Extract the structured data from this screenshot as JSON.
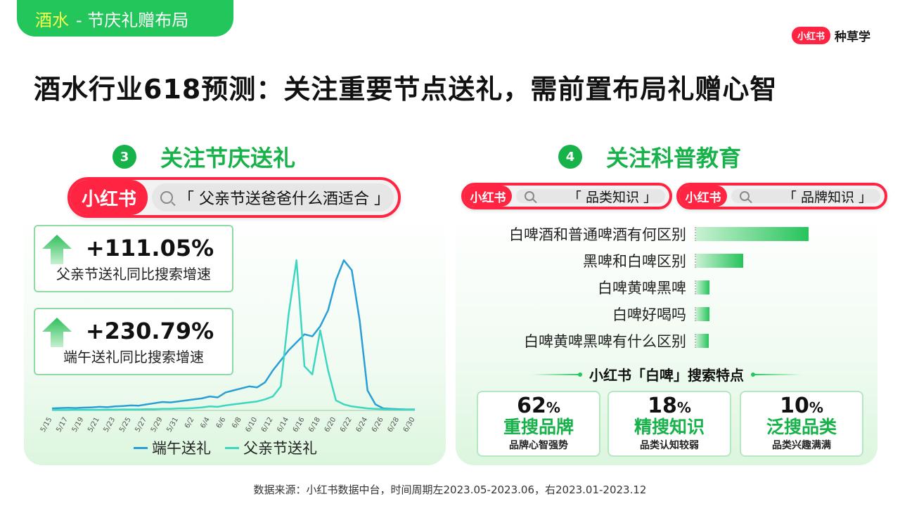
{
  "tag": {
    "highlight": "酒水",
    "rest": "- 节庆礼赠布局"
  },
  "brand": {
    "badge": "小红书",
    "text": "种草学"
  },
  "headline": "酒水行业618预测：关注重要节点送礼，需前置布局礼赠心智",
  "left": {
    "num": "3",
    "title": "关注节庆送礼",
    "search": {
      "logo": "小红书",
      "query": "「 父亲节送爸爸什么酒适合 」"
    },
    "stats": [
      {
        "value": "+111.05%",
        "label": "父亲节送礼同比搜索增速"
      },
      {
        "value": "+230.79%",
        "label": "端午送礼同比搜索增速"
      }
    ]
  },
  "right": {
    "num": "4",
    "title": "关注科普教育",
    "searches": [
      {
        "logo": "小红书",
        "query": "「 品类知识 」"
      },
      {
        "logo": "小红书",
        "query": "「 品牌知识 」"
      }
    ],
    "bars": [
      {
        "label": "白啤酒和普通啤酒有何区别",
        "value": 1.0
      },
      {
        "label": "黑啤和白啤区别",
        "value": 0.42
      },
      {
        "label": "白啤黄啤黑啤",
        "value": 0.12
      },
      {
        "label": "白啤好喝吗",
        "value": 0.12
      },
      {
        "label": "白啤黄啤黑啤有什么区别",
        "value": 0.11
      }
    ],
    "feature_title": "小红书「白啤」搜索特点",
    "features": [
      {
        "pct": "62",
        "unit": "%",
        "main": "重搜品牌",
        "sub": "品牌心智强势"
      },
      {
        "pct": "18",
        "unit": "%",
        "main": "精搜知识",
        "sub": "品类认知较弱"
      },
      {
        "pct": "10",
        "unit": "%",
        "main": "泛搜品类",
        "sub": "品类兴趣满满"
      }
    ]
  },
  "colors": {
    "accent_green": "#17b24a",
    "red": "#ff2442",
    "series_dragon": "#2a9fd6",
    "series_father": "#3ed6c0"
  },
  "chart_data": {
    "type": "line",
    "x": [
      "5/15",
      "5/16",
      "5/17",
      "5/18",
      "5/19",
      "5/20",
      "5/21",
      "5/22",
      "5/23",
      "5/24",
      "5/25",
      "5/26",
      "5/27",
      "5/28",
      "5/29",
      "5/30",
      "5/31",
      "6/1",
      "6/2",
      "6/3",
      "6/4",
      "6/5",
      "6/6",
      "6/7",
      "6/8",
      "6/9",
      "6/10",
      "6/11",
      "6/12",
      "6/13",
      "6/14",
      "6/15",
      "6/16",
      "6/17",
      "6/18",
      "6/19",
      "6/20",
      "6/21",
      "6/22",
      "6/23",
      "6/24",
      "6/25",
      "6/26",
      "6/27",
      "6/28",
      "6/29",
      "6/30"
    ],
    "x_ticks": [
      "5/15",
      "5/17",
      "5/19",
      "5/21",
      "5/23",
      "5/25",
      "5/27",
      "5/29",
      "5/31",
      "6/2",
      "6/4",
      "6/6",
      "6/8",
      "6/10",
      "6/12",
      "6/14",
      "6/16",
      "6/18",
      "6/20",
      "6/22",
      "6/24",
      "6/26",
      "6/28",
      "6/30"
    ],
    "series": [
      {
        "name": "端午送礼",
        "values": [
          1,
          1.2,
          1.3,
          1.2,
          1.4,
          1.5,
          1.8,
          1.6,
          2,
          2.2,
          2.5,
          2.4,
          3,
          3.6,
          4.2,
          4,
          4.5,
          5,
          5.5,
          6,
          7,
          6.5,
          9,
          10,
          11,
          12,
          11.5,
          14,
          20,
          25,
          30,
          34,
          38,
          37,
          42,
          50,
          65,
          75,
          70,
          45,
          10,
          3,
          1,
          0.8,
          0.6,
          0.5,
          0.5
        ]
      },
      {
        "name": "父亲节送礼",
        "values": [
          0.2,
          0.2,
          0.2,
          0.3,
          0.3,
          0.3,
          0.3,
          0.4,
          0.4,
          0.5,
          0.5,
          0.5,
          0.6,
          0.6,
          0.8,
          0.8,
          1,
          1,
          1.2,
          1.5,
          2,
          1.8,
          2.5,
          3,
          3.5,
          4,
          4.5,
          5.5,
          7,
          12,
          48,
          75,
          22,
          18,
          40,
          20,
          5,
          3,
          2,
          1.5,
          1,
          0.8,
          0.6,
          0.5,
          0.4,
          0.4,
          0.3
        ]
      }
    ],
    "ylim": [
      0,
      80
    ],
    "legend": "bottom"
  },
  "source": "数据来源：小红书数据中台，时间周期左2023.05-2023.06，右2023.01-2023.12"
}
